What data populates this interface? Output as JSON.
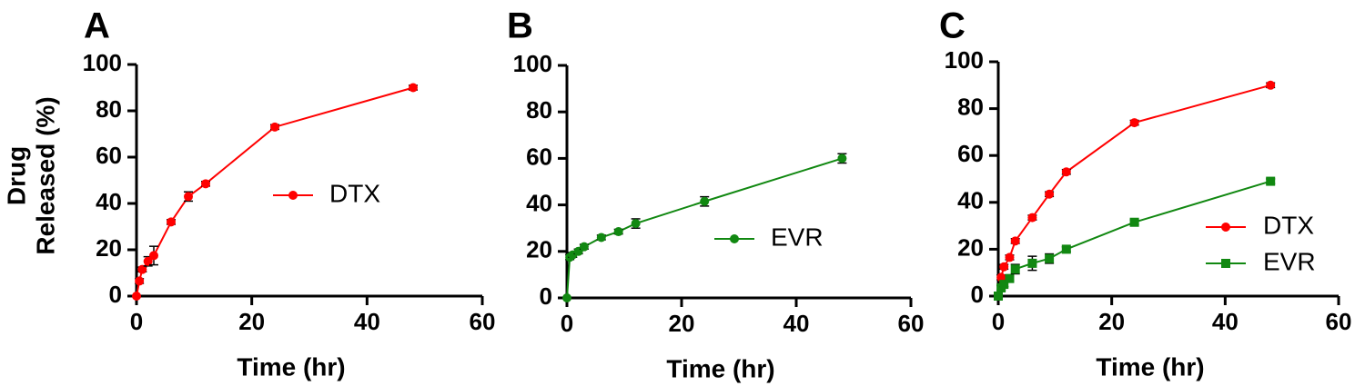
{
  "chart_data": [
    {
      "type": "line",
      "panel_label": "A",
      "xlabel": "Time (hr)",
      "ylabel_lines": [
        "Drug",
        "Released (%)"
      ],
      "xlim": [
        0,
        60
      ],
      "ylim": [
        0,
        100
      ],
      "xticks": [
        "0",
        "20",
        "40",
        "60"
      ],
      "yticks": [
        "0",
        "20",
        "40",
        "60",
        "80",
        "100"
      ],
      "series": [
        {
          "name": "DTX",
          "color": "#ff0000",
          "marker": "circle",
          "x": [
            0,
            0.5,
            1,
            2,
            3,
            6,
            9,
            12,
            24,
            48
          ],
          "y": [
            0,
            6.5,
            11.5,
            15,
            17.5,
            32,
            43,
            48.5,
            73,
            90
          ],
          "err": [
            0,
            1,
            1,
            2,
            4,
            1,
            2,
            1,
            1,
            1
          ]
        }
      ]
    },
    {
      "type": "line",
      "panel_label": "B",
      "xlabel": "Time (hr)",
      "ylabel_lines": [],
      "xlim": [
        0,
        60
      ],
      "ylim": [
        0,
        100
      ],
      "xticks": [
        "0",
        "20",
        "40",
        "60"
      ],
      "yticks": [
        "0",
        "20",
        "40",
        "60",
        "80",
        "100"
      ],
      "series": [
        {
          "name": "EVR",
          "color": "#118811",
          "marker": "circle",
          "x": [
            0,
            0.5,
            1,
            2,
            3,
            6,
            9,
            12,
            24,
            48
          ],
          "y": [
            0,
            17.5,
            18.5,
            20,
            22,
            26,
            28.5,
            32,
            41.5,
            60
          ],
          "err": [
            0,
            1,
            1,
            1,
            1,
            1,
            1,
            2,
            2,
            2
          ]
        }
      ]
    },
    {
      "type": "line",
      "panel_label": "C",
      "xlabel": "Time (hr)",
      "ylabel_lines": [],
      "xlim": [
        0,
        60
      ],
      "ylim": [
        0,
        100
      ],
      "xticks": [
        "0",
        "20",
        "40",
        "60"
      ],
      "yticks": [
        "0",
        "20",
        "40",
        "60",
        "80",
        "100"
      ],
      "series": [
        {
          "name": "DTX",
          "color": "#ff0000",
          "marker": "circle",
          "x": [
            0,
            0.5,
            1,
            2,
            3,
            6,
            9,
            12,
            24,
            48
          ],
          "y": [
            0,
            8,
            12.5,
            16.5,
            23.5,
            33.5,
            43.5,
            53,
            74,
            90
          ],
          "err": [
            0,
            1,
            1,
            1,
            1,
            1,
            1,
            1,
            1,
            1
          ]
        },
        {
          "name": "EVR",
          "color": "#118811",
          "marker": "square",
          "x": [
            0,
            0.5,
            1,
            2,
            3,
            6,
            9,
            12,
            24,
            48
          ],
          "y": [
            0,
            3.5,
            5,
            7.5,
            11.5,
            14,
            16,
            20,
            31.5,
            49
          ],
          "err": [
            0,
            1,
            1,
            1,
            2,
            3,
            2,
            1,
            1,
            1
          ]
        }
      ]
    }
  ]
}
